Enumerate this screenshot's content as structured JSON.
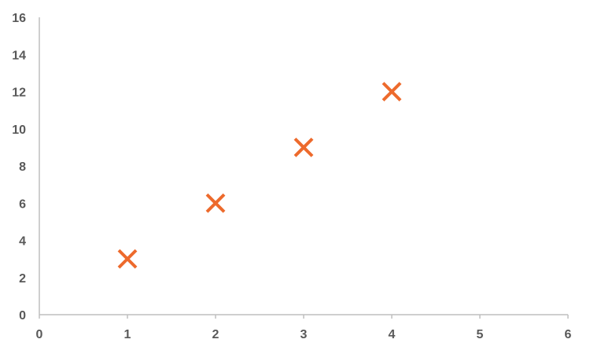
{
  "chart_data": {
    "type": "scatter",
    "title": "",
    "xlabel": "",
    "ylabel": "",
    "xlim": [
      0,
      6
    ],
    "ylim": [
      0,
      16
    ],
    "x_ticks": [
      0,
      1,
      2,
      3,
      4,
      5,
      6
    ],
    "y_ticks": [
      0,
      2,
      4,
      6,
      8,
      10,
      12,
      14,
      16
    ],
    "grid": false,
    "legend": "none",
    "marker": "x",
    "series": [
      {
        "color": "#ed6a2c",
        "points": [
          {
            "x": 1,
            "y": 3
          },
          {
            "x": 2,
            "y": 6
          },
          {
            "x": 3,
            "y": 9
          },
          {
            "x": 4,
            "y": 12
          }
        ]
      }
    ]
  }
}
